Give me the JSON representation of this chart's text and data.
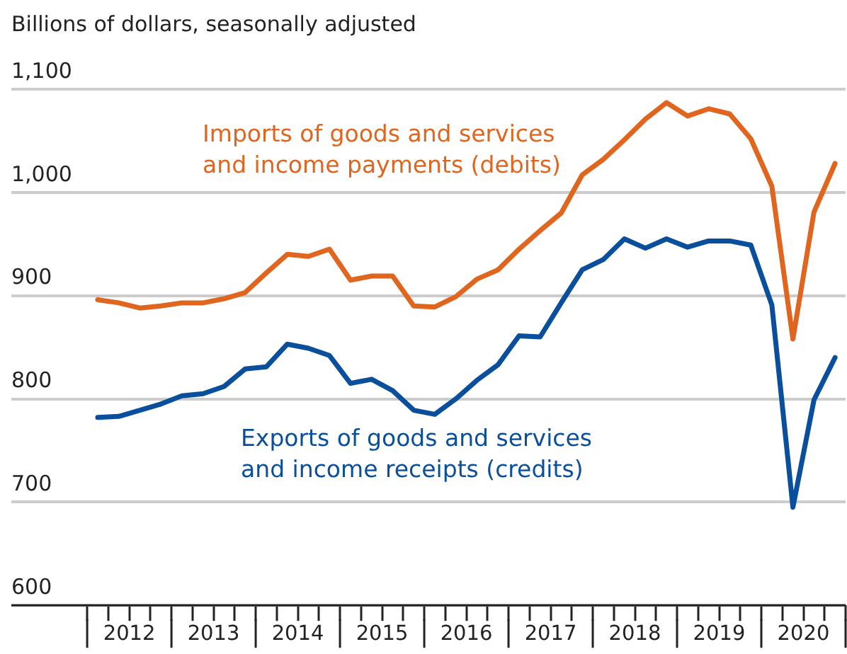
{
  "chart_data": {
    "type": "line",
    "ylabel": "Billions of dollars, seasonally adjusted",
    "x": [
      2012.125,
      2012.375,
      2012.625,
      2012.875,
      2013.125,
      2013.375,
      2013.625,
      2013.875,
      2014.125,
      2014.375,
      2014.625,
      2014.875,
      2015.125,
      2015.375,
      2015.625,
      2015.875,
      2016.125,
      2016.375,
      2016.625,
      2016.875,
      2017.125,
      2017.375,
      2017.625,
      2017.875,
      2018.125,
      2018.375,
      2018.625,
      2018.875,
      2019.125,
      2019.375,
      2019.625,
      2019.875,
      2020.125,
      2020.375,
      2020.625,
      2020.875
    ],
    "series": [
      {
        "name": "Imports of goods and services\nand income payments (debits)",
        "color": "#e0661f",
        "values": [
          896,
          893,
          888,
          890,
          893,
          893,
          897,
          903,
          922,
          940,
          938,
          945,
          915,
          919,
          919,
          890,
          889,
          899,
          916,
          925,
          945,
          963,
          980,
          1017,
          1032,
          1051,
          1071,
          1087,
          1074,
          1081,
          1076,
          1052,
          1006,
          858,
          981,
          1028
        ]
      },
      {
        "name": "Exports of goods and services\nand income receipts (credits)",
        "color": "#0a4f9c",
        "values": [
          782,
          783,
          789,
          795,
          803,
          805,
          812,
          829,
          831,
          853,
          849,
          842,
          815,
          819,
          808,
          789,
          785,
          800,
          818,
          833,
          861,
          860,
          893,
          925,
          935,
          955,
          946,
          955,
          947,
          953,
          953,
          949,
          891,
          695,
          799,
          840
        ]
      }
    ],
    "xlim": [
      2011.1,
      2021
    ],
    "xticks": [
      {
        "value": 2012,
        "label": null
      },
      {
        "value": 2012.25,
        "label": null
      },
      {
        "value": 2012.5,
        "label": "2012"
      },
      {
        "value": 2012.75,
        "label": null
      },
      {
        "value": 2013,
        "label": null
      },
      {
        "value": 2013.25,
        "label": null
      },
      {
        "value": 2013.5,
        "label": "2013"
      },
      {
        "value": 2013.75,
        "label": null
      },
      {
        "value": 2014,
        "label": null
      },
      {
        "value": 2014.25,
        "label": null
      },
      {
        "value": 2014.5,
        "label": "2014"
      },
      {
        "value": 2014.75,
        "label": null
      },
      {
        "value": 2015,
        "label": null
      },
      {
        "value": 2015.25,
        "label": null
      },
      {
        "value": 2015.5,
        "label": "2015"
      },
      {
        "value": 2015.75,
        "label": null
      },
      {
        "value": 2016,
        "label": null
      },
      {
        "value": 2016.25,
        "label": null
      },
      {
        "value": 2016.5,
        "label": "2016"
      },
      {
        "value": 2016.75,
        "label": null
      },
      {
        "value": 2017,
        "label": null
      },
      {
        "value": 2017.25,
        "label": null
      },
      {
        "value": 2017.5,
        "label": "2017"
      },
      {
        "value": 2017.75,
        "label": null
      },
      {
        "value": 2018,
        "label": null
      },
      {
        "value": 2018.25,
        "label": null
      },
      {
        "value": 2018.5,
        "label": "2018"
      },
      {
        "value": 2018.75,
        "label": null
      },
      {
        "value": 2019,
        "label": null
      },
      {
        "value": 2019.25,
        "label": null
      },
      {
        "value": 2019.5,
        "label": "2019"
      },
      {
        "value": 2019.75,
        "label": null
      },
      {
        "value": 2020,
        "label": null
      },
      {
        "value": 2020.25,
        "label": null
      },
      {
        "value": 2020.5,
        "label": "2020"
      },
      {
        "value": 2020.75,
        "label": null
      },
      {
        "value": 2021,
        "label": null
      }
    ],
    "ylim": [
      600,
      1100
    ],
    "yticks": [
      {
        "value": 600,
        "label": "600"
      },
      {
        "value": 700,
        "label": "700"
      },
      {
        "value": 800,
        "label": "800"
      },
      {
        "value": 900,
        "label": "900"
      },
      {
        "value": 1000,
        "label": "1,000"
      },
      {
        "value": 1100,
        "label": "1,100"
      }
    ],
    "grid": "y",
    "legend": false,
    "marker": "none",
    "line_style": "solid"
  }
}
